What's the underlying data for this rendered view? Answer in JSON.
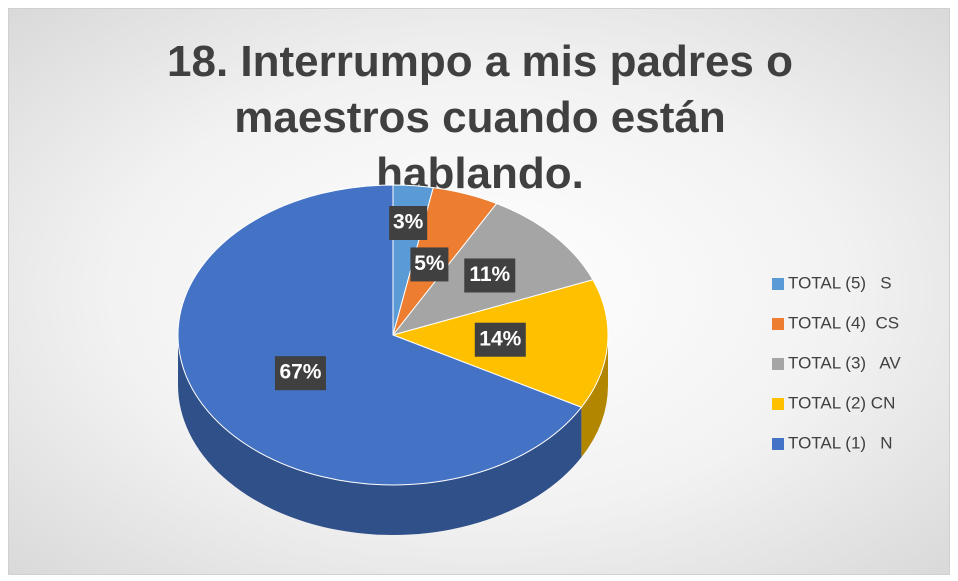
{
  "chart_data": {
    "type": "pie",
    "title": "18. Interrumpo a mis padres o maestros cuando están hablando.",
    "series": [
      {
        "name": "TOTAL (5)   S",
        "color": "#5B9BD5"
      },
      {
        "name": "TOTAL (4)  CS",
        "color": "#ED7D31"
      },
      {
        "name": "TOTAL (3)   AV",
        "color": "#A5A5A5"
      },
      {
        "name": "TOTAL (2) CN",
        "color": "#FFC000"
      },
      {
        "name": "TOTAL (1)   N",
        "color": "#4472C4"
      }
    ],
    "values": [
      3,
      5,
      11,
      14,
      67
    ],
    "value_labels": [
      "3%",
      "5%",
      "11%",
      "14%",
      "67%"
    ],
    "legend": "right"
  }
}
